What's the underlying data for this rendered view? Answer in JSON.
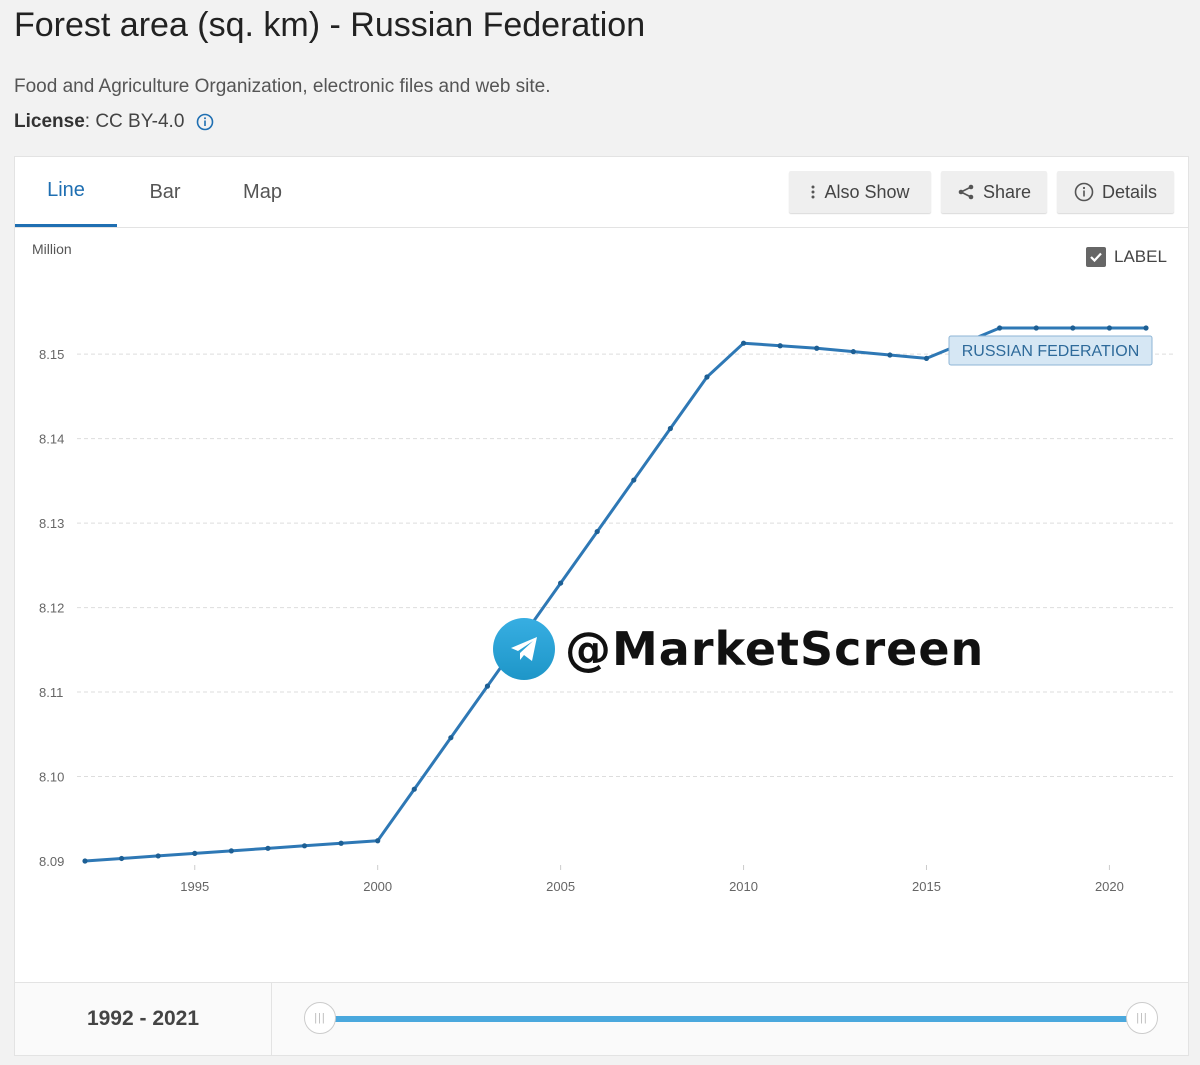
{
  "header": {
    "title": "Forest area (sq. km) - Russian Federation",
    "source": "Food and Agriculture Organization, electronic files and web site.",
    "license_label": "License",
    "license_value": " : CC BY-4.0"
  },
  "tabs": [
    {
      "label": "Line",
      "active": true
    },
    {
      "label": "Bar",
      "active": false
    },
    {
      "label": "Map",
      "active": false
    }
  ],
  "toolbar": {
    "also_show": "Also Show",
    "share": "Share",
    "details": "Details"
  },
  "label_toggle": {
    "label": "LABEL",
    "checked": true
  },
  "range": {
    "label": "1992 - 2021",
    "start": 1992,
    "end": 2021
  },
  "watermark": "@MarketScreen",
  "colors": {
    "accent": "#1f6fb2",
    "line": "#2e78b5",
    "slider": "#4aa8dd"
  },
  "chart_data": {
    "type": "line",
    "ylabel": "Million",
    "x": [
      1992,
      1993,
      1994,
      1995,
      1996,
      1997,
      1998,
      1999,
      2000,
      2001,
      2002,
      2003,
      2004,
      2005,
      2006,
      2007,
      2008,
      2009,
      2010,
      2011,
      2012,
      2013,
      2014,
      2015,
      2016,
      2017,
      2018,
      2019,
      2020,
      2021
    ],
    "series": [
      {
        "name": "RUSSIAN FEDERATION",
        "values": [
          8.09,
          8.0903,
          8.0906,
          8.0909,
          8.0912,
          8.0915,
          8.0918,
          8.0921,
          8.0924,
          8.0985,
          8.1046,
          8.1107,
          8.1168,
          8.1229,
          8.129,
          8.1351,
          8.1412,
          8.1473,
          8.1513,
          8.151,
          8.1507,
          8.1503,
          8.1499,
          8.1495,
          8.1513,
          8.1531,
          8.1531,
          8.1531,
          8.1531,
          8.1531
        ]
      }
    ],
    "xticks": [
      1995,
      2000,
      2005,
      2010,
      2015,
      2020
    ],
    "yticks": [
      8.09,
      8.1,
      8.11,
      8.12,
      8.13,
      8.14,
      8.15
    ],
    "ytick_labels": [
      "8.09",
      "8.10",
      "8.11",
      "8.12",
      "8.13",
      "8.14",
      "8.15"
    ],
    "xlim": [
      1992,
      2021
    ],
    "ylim": [
      8.09,
      8.1531
    ],
    "grid": true,
    "series_label_shown": true
  }
}
